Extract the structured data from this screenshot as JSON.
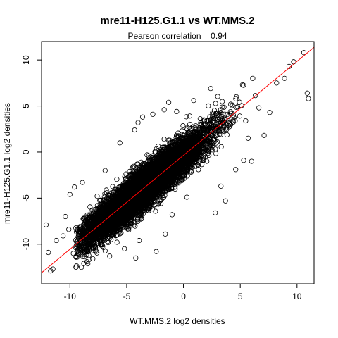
{
  "chart_data": {
    "type": "scatter",
    "title": "mre11-H125.G1.1 vs WT.MMS.2",
    "subtitle": "Pearson correlation =  0.94",
    "xlabel": "WT.MMS.2 log2 densities",
    "ylabel": "mre11-H125.G1.1 log2 densities",
    "xlim": [
      -12.5,
      11.5
    ],
    "ylim": [
      -14.3,
      12.0
    ],
    "xticks": [
      -10,
      -5,
      0,
      5,
      10
    ],
    "yticks": [
      -10,
      -5,
      0,
      5,
      10
    ],
    "marker": "open-circle",
    "point_color": "#000000",
    "fit_line": {
      "color": "#ff0000",
      "slope": 1.02,
      "intercept": -0.35
    },
    "cloud": {
      "count": 9000,
      "x_mean": -3.5,
      "x_sd": 2.7,
      "x_range": [
        -9.5,
        8.3
      ],
      "slope": 1.02,
      "intercept": -0.35,
      "residual_sd": 1.05
    },
    "outliers": [
      [
        -12.1,
        -7.9
      ],
      [
        -11.9,
        -10.9
      ],
      [
        -11.7,
        -12.9
      ],
      [
        -11.5,
        -12.7
      ],
      [
        -11.2,
        -9.6
      ],
      [
        -10.6,
        -9.1
      ],
      [
        -10.1,
        -8.4
      ],
      [
        -10.0,
        -4.6
      ],
      [
        -9.6,
        -3.8
      ],
      [
        -8.9,
        -3.3
      ],
      [
        -9.7,
        -11.0
      ],
      [
        -8.5,
        -11.9
      ],
      [
        -6.5,
        -11.3
      ],
      [
        -4.2,
        -11.5
      ],
      [
        -2.4,
        -10.8
      ],
      [
        -1.6,
        -8.9
      ],
      [
        -3.9,
        -9.6
      ],
      [
        -6.9,
        -2.0
      ],
      [
        -5.6,
        1.0
      ],
      [
        -4.3,
        2.4
      ],
      [
        -4.0,
        3.2
      ],
      [
        -3.6,
        3.8
      ],
      [
        -2.7,
        4.1
      ],
      [
        -1.7,
        4.6
      ],
      [
        -1.3,
        5.4
      ],
      [
        -0.6,
        4.4
      ],
      [
        0.9,
        5.6
      ],
      [
        2.4,
        6.9
      ],
      [
        1.8,
        3.5
      ],
      [
        0.3,
        -4.9
      ],
      [
        2.8,
        -6.6
      ],
      [
        3.3,
        -3.7
      ],
      [
        3.7,
        -5.3
      ],
      [
        4.6,
        -1.9
      ],
      [
        5.3,
        -0.9
      ],
      [
        5.7,
        1.5
      ],
      [
        6.0,
        -1.0
      ],
      [
        7.1,
        1.8
      ],
      [
        7.6,
        4.3
      ],
      [
        8.2,
        7.5
      ],
      [
        8.9,
        8.0
      ],
      [
        9.3,
        9.3
      ],
      [
        9.7,
        9.8
      ],
      [
        10.6,
        10.8
      ],
      [
        10.9,
        6.4
      ],
      [
        11.0,
        5.8
      ],
      [
        5.2,
        7.3
      ],
      [
        6.1,
        8.0
      ],
      [
        -1.0,
        -6.8
      ],
      [
        -5.2,
        -10.5
      ],
      [
        -7.8,
        -10.2
      ],
      [
        -10.4,
        -7.0
      ]
    ]
  }
}
